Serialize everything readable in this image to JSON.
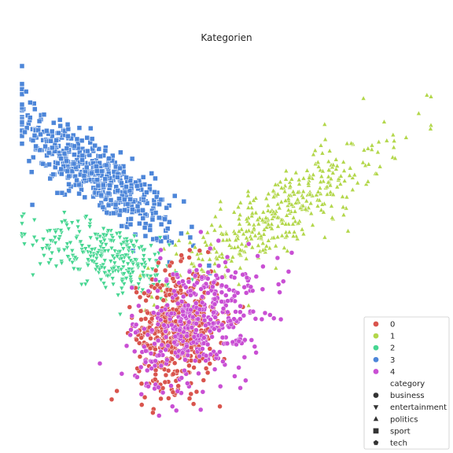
{
  "chart_data": {
    "type": "scatter",
    "title": "Kategorien",
    "xlabel": "",
    "ylabel": "",
    "axes_visible": false,
    "grid": false,
    "legend_placement": "bottom-right",
    "legend": {
      "hue_entries": [
        {
          "label": "0",
          "color": "#d9544d"
        },
        {
          "label": "1",
          "color": "#b3d74b"
        },
        {
          "label": "2",
          "color": "#47d692"
        },
        {
          "label": "3",
          "color": "#4d86d9"
        },
        {
          "label": "4",
          "color": "#c94fd4"
        }
      ],
      "style_title": "category",
      "style_entries": [
        {
          "label": "business",
          "marker": "circle"
        },
        {
          "label": "entertainment",
          "marker": "triangle-down"
        },
        {
          "label": "politics",
          "marker": "triangle-up"
        },
        {
          "label": "sport",
          "marker": "square"
        },
        {
          "label": "tech",
          "marker": "pentagon"
        }
      ]
    },
    "xlim": [
      0,
      1
    ],
    "ylim": [
      0,
      1
    ],
    "series": [
      {
        "label": "3",
        "color": "#4d86d9",
        "marker": "square",
        "count": 500,
        "center": [
          0.18,
          0.7
        ],
        "spread": [
          0.1,
          0.09
        ],
        "corr": -0.85,
        "extremes": [
          [
            0.01,
            0.93
          ],
          [
            0.02,
            0.9
          ],
          [
            0.35,
            0.53
          ],
          [
            0.34,
            0.52
          ]
        ]
      },
      {
        "label": "1",
        "color": "#b3d74b",
        "marker": "triangle-up",
        "count": 400,
        "center": [
          0.62,
          0.59
        ],
        "spread": [
          0.13,
          0.1
        ],
        "corr": 0.85,
        "extremes": [
          [
            0.99,
            0.92
          ],
          [
            0.97,
            0.87
          ],
          [
            0.74,
            0.84
          ],
          [
            0.5,
            0.54
          ]
        ]
      },
      {
        "label": "2",
        "color": "#47d692",
        "marker": "triangle-down",
        "count": 300,
        "center": [
          0.21,
          0.48
        ],
        "spread": [
          0.09,
          0.05
        ],
        "corr": -0.5,
        "extremes": [
          [
            0.07,
            0.47
          ],
          [
            0.05,
            0.5
          ],
          [
            0.36,
            0.51
          ],
          [
            0.24,
            0.32
          ]
        ]
      },
      {
        "label": "0",
        "color": "#d9544d",
        "marker": "circle",
        "count": 500,
        "center": [
          0.38,
          0.28
        ],
        "spread": [
          0.05,
          0.08
        ],
        "corr": 0.1,
        "extremes": [
          [
            0.32,
            0.05
          ],
          [
            0.35,
            0.44
          ],
          [
            0.28,
            0.38
          ],
          [
            0.28,
            0.25
          ]
        ]
      },
      {
        "label": "4",
        "color": "#c94fd4",
        "marker": "circle",
        "count": 400,
        "center": [
          0.43,
          0.3
        ],
        "spread": [
          0.08,
          0.09
        ],
        "corr": 0.35,
        "extremes": [
          [
            0.63,
            0.38
          ],
          [
            0.55,
            0.42
          ],
          [
            0.46,
            0.5
          ],
          [
            0.52,
            0.15
          ]
        ]
      }
    ]
  }
}
